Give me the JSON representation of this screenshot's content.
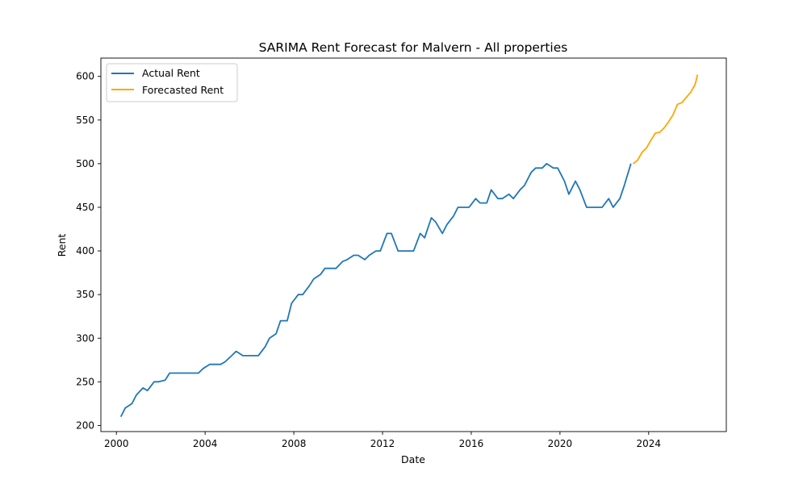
{
  "chart_data": {
    "type": "line",
    "title": "SARIMA Rent Forecast for Malvern - All properties",
    "xlabel": "Date",
    "ylabel": "Rent",
    "xlim": [
      1999.3,
      2027.5
    ],
    "ylim": [
      193,
      621
    ],
    "x_ticks": [
      2000,
      2004,
      2008,
      2012,
      2016,
      2020,
      2024
    ],
    "y_ticks": [
      200,
      250,
      300,
      350,
      400,
      450,
      500,
      550,
      600
    ],
    "grid": false,
    "legend": {
      "placement": "top-left"
    },
    "series": [
      {
        "name": "Actual Rent",
        "color": "#1f77b4",
        "x": [
          2000.2,
          2000.4,
          2000.7,
          2000.9,
          2001.2,
          2001.4,
          2001.7,
          2001.9,
          2002.2,
          2002.4,
          2002.7,
          2002.9,
          2003.2,
          2003.4,
          2003.7,
          2003.9,
          2004.2,
          2004.4,
          2004.7,
          2004.9,
          2005.2,
          2005.4,
          2005.7,
          2005.9,
          2006.2,
          2006.4,
          2006.7,
          2006.9,
          2007.2,
          2007.4,
          2007.7,
          2007.9,
          2008.2,
          2008.4,
          2008.7,
          2008.9,
          2009.2,
          2009.4,
          2009.7,
          2009.9,
          2010.2,
          2010.4,
          2010.7,
          2010.9,
          2011.2,
          2011.4,
          2011.7,
          2011.9,
          2012.2,
          2012.4,
          2012.7,
          2012.9,
          2013.2,
          2013.4,
          2013.7,
          2013.9,
          2014.2,
          2014.4,
          2014.7,
          2014.9,
          2015.2,
          2015.4,
          2015.7,
          2015.9,
          2016.2,
          2016.4,
          2016.7,
          2016.9,
          2017.2,
          2017.4,
          2017.7,
          2017.9,
          2018.2,
          2018.4,
          2018.7,
          2018.9,
          2019.2,
          2019.4,
          2019.7,
          2019.9,
          2020.2,
          2020.4,
          2020.7,
          2020.9,
          2021.2,
          2021.4,
          2021.7,
          2021.9,
          2022.2,
          2022.4,
          2022.7,
          2022.9,
          2023.2
        ],
        "values": [
          210,
          220,
          225,
          235,
          243,
          240,
          250,
          250,
          252,
          260,
          260,
          260,
          260,
          260,
          260,
          265,
          270,
          270,
          270,
          273,
          280,
          285,
          280,
          280,
          280,
          280,
          290,
          300,
          305,
          320,
          320,
          340,
          350,
          350,
          360,
          368,
          373,
          380,
          380,
          380,
          388,
          390,
          395,
          395,
          390,
          395,
          400,
          400,
          420,
          420,
          400,
          400,
          400,
          400,
          420,
          415,
          438,
          433,
          420,
          430,
          440,
          450,
          450,
          450,
          460,
          455,
          455,
          470,
          460,
          460,
          465,
          460,
          470,
          475,
          490,
          495,
          495,
          500,
          495,
          495,
          480,
          465,
          480,
          470,
          450,
          450,
          450,
          450,
          460,
          450,
          460,
          475,
          500
        ]
      },
      {
        "name": "Forecasted Rent",
        "color": "#ffa500",
        "x": [
          2023.3,
          2023.5,
          2023.7,
          2023.9,
          2024.1,
          2024.3,
          2024.5,
          2024.7,
          2024.9,
          2025.1,
          2025.3,
          2025.5,
          2025.7,
          2025.9,
          2026.1,
          2026.2
        ],
        "values": [
          500,
          504,
          513,
          518,
          527,
          535,
          536,
          541,
          548,
          556,
          568,
          570,
          576,
          582,
          591,
          602
        ]
      }
    ]
  }
}
